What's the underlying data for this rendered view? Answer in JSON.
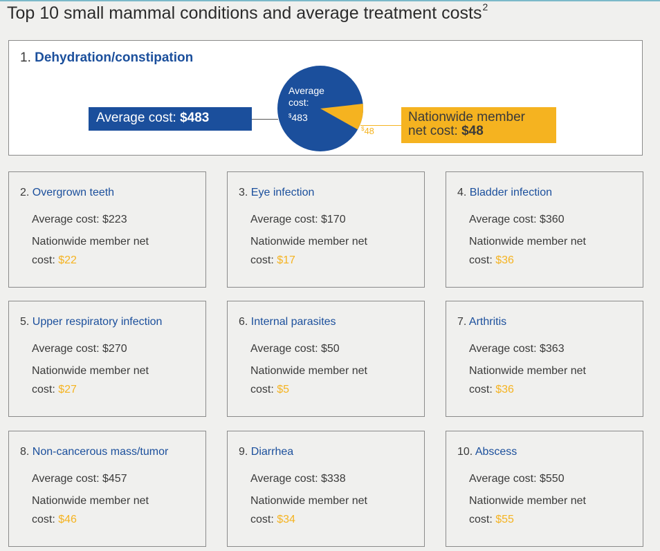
{
  "header": {
    "title": "Top 10 small mammal conditions and average treatment costs",
    "footnote": "2"
  },
  "feature": {
    "number": "1.",
    "name": "Dehydration/constipation",
    "avg_label": "Average cost:",
    "avg_value": "$483",
    "pie_line1": "Average",
    "pie_line2": "cost:",
    "pie_symbol": "$",
    "pie_value": "483",
    "slice_symbol": "$",
    "slice_value": "48",
    "net_line1": "Nationwide member",
    "net_line2_label": "net cost:",
    "net_value": "$48",
    "chart_data": {
      "type": "pie",
      "total": 483,
      "slices": [
        {
          "label": "Average cost",
          "value": 435
        },
        {
          "label": "Nationwide member net cost",
          "value": 48
        }
      ]
    }
  },
  "labels": {
    "avg": "Average cost:",
    "net1": "Nationwide member net",
    "net2": "cost:"
  },
  "cards": [
    {
      "num": "2.",
      "name": "Overgrown teeth",
      "avg": "$223",
      "net": "$22"
    },
    {
      "num": "3.",
      "name": "Eye infection",
      "avg": "$170",
      "net": "$17"
    },
    {
      "num": "4.",
      "name": "Bladder infection",
      "avg": "$360",
      "net": "$36"
    },
    {
      "num": "5.",
      "name": "Upper respiratory infection",
      "avg": "$270",
      "net": "$27"
    },
    {
      "num": "6.",
      "name": "Internal parasites",
      "avg": "$50",
      "net": "$5"
    },
    {
      "num": "7.",
      "name": "Arthritis",
      "avg": "$363",
      "net": "$36"
    },
    {
      "num": "8.",
      "name": "Non-cancerous mass/tumor",
      "avg": "$457",
      "net": "$46"
    },
    {
      "num": "9.",
      "name": "Diarrhea",
      "avg": "$338",
      "net": "$34"
    },
    {
      "num": "10.",
      "name": "Abscess",
      "avg": "$550",
      "net": "$55"
    }
  ],
  "colors": {
    "blue": "#1b4f9c",
    "gold": "#f5b320"
  }
}
